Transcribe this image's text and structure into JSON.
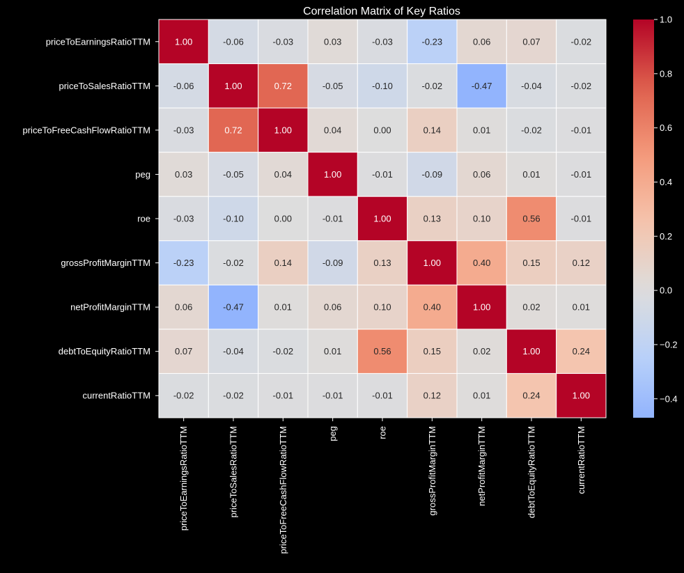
{
  "chart_data": {
    "type": "heatmap",
    "title": "Correlation Matrix of Key Ratios",
    "labels": [
      "priceToEarningsRatioTTM",
      "priceToSalesRatioTTM",
      "priceToFreeCashFlowRatioTTM",
      "peg",
      "roe",
      "grossProfitMarginTTM",
      "netProfitMarginTTM",
      "debtToEquityRatioTTM",
      "currentRatioTTM"
    ],
    "values": [
      [
        1.0,
        -0.06,
        -0.03,
        0.03,
        -0.03,
        -0.23,
        0.06,
        0.07,
        -0.02
      ],
      [
        -0.06,
        1.0,
        0.72,
        -0.05,
        -0.1,
        -0.02,
        -0.47,
        -0.04,
        -0.02
      ],
      [
        -0.03,
        0.72,
        1.0,
        0.04,
        0.0,
        0.14,
        0.01,
        -0.02,
        -0.01
      ],
      [
        0.03,
        -0.05,
        0.04,
        1.0,
        -0.01,
        -0.09,
        0.06,
        0.01,
        -0.01
      ],
      [
        -0.03,
        -0.1,
        0.0,
        -0.01,
        1.0,
        0.13,
        0.1,
        0.56,
        -0.01
      ],
      [
        -0.23,
        -0.02,
        0.14,
        -0.09,
        0.13,
        1.0,
        0.4,
        0.15,
        0.12
      ],
      [
        0.06,
        -0.47,
        0.01,
        0.06,
        0.1,
        0.4,
        1.0,
        0.02,
        0.01
      ],
      [
        0.07,
        -0.04,
        -0.02,
        0.01,
        0.56,
        0.15,
        0.02,
        1.0,
        0.24
      ],
      [
        -0.02,
        -0.02,
        -0.01,
        -0.01,
        -0.01,
        0.12,
        0.01,
        0.24,
        1.0
      ]
    ],
    "annotation_format": "0.00",
    "colormap": "coolwarm",
    "center": 0.0,
    "colorbar": {
      "vmin": -0.47,
      "vmax": 1.0,
      "ticks": [
        1.0,
        0.8,
        0.6,
        0.4,
        0.2,
        0.0,
        -0.2,
        -0.4
      ],
      "tick_labels": [
        "1.0",
        "0.8",
        "0.6",
        "0.4",
        "0.2",
        "0.0",
        "−0.2",
        "−0.4"
      ]
    },
    "xlabel": "",
    "ylabel": "",
    "background": "#000000",
    "text_color": "#ffffff",
    "gridlines": "white"
  }
}
